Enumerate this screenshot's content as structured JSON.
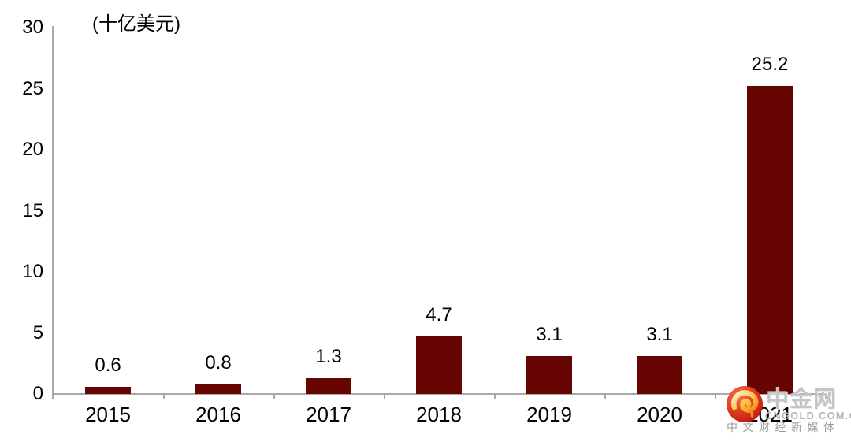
{
  "chart_data": {
    "type": "bar",
    "unit_label": "(十亿美元)",
    "categories": [
      "2015",
      "2016",
      "2017",
      "2018",
      "2019",
      "2020",
      "2021"
    ],
    "values": [
      0.6,
      0.8,
      1.3,
      4.7,
      3.1,
      3.1,
      25.2
    ],
    "value_labels": [
      "0.6",
      "0.8",
      "1.3",
      "4.7",
      "3.1",
      "3.1",
      "25.2"
    ],
    "y_ticks": [
      0,
      5,
      10,
      15,
      20,
      25,
      30
    ],
    "ylim": [
      0,
      30
    ],
    "xlabel": "",
    "ylabel": "(十亿美元)",
    "grid": false,
    "legend_position": "none",
    "bar_color": "#670502",
    "axis_color": "#a9a9a9",
    "label_color": "#000000"
  },
  "watermark": {
    "logo_icon": "cngold-swirl-logo",
    "site_name": "中金网",
    "domain": "CNGOLD.COM.CN",
    "tagline": "中文财经新媒体",
    "logo_red": "#d92b1d",
    "logo_gold": "#f7a927"
  }
}
